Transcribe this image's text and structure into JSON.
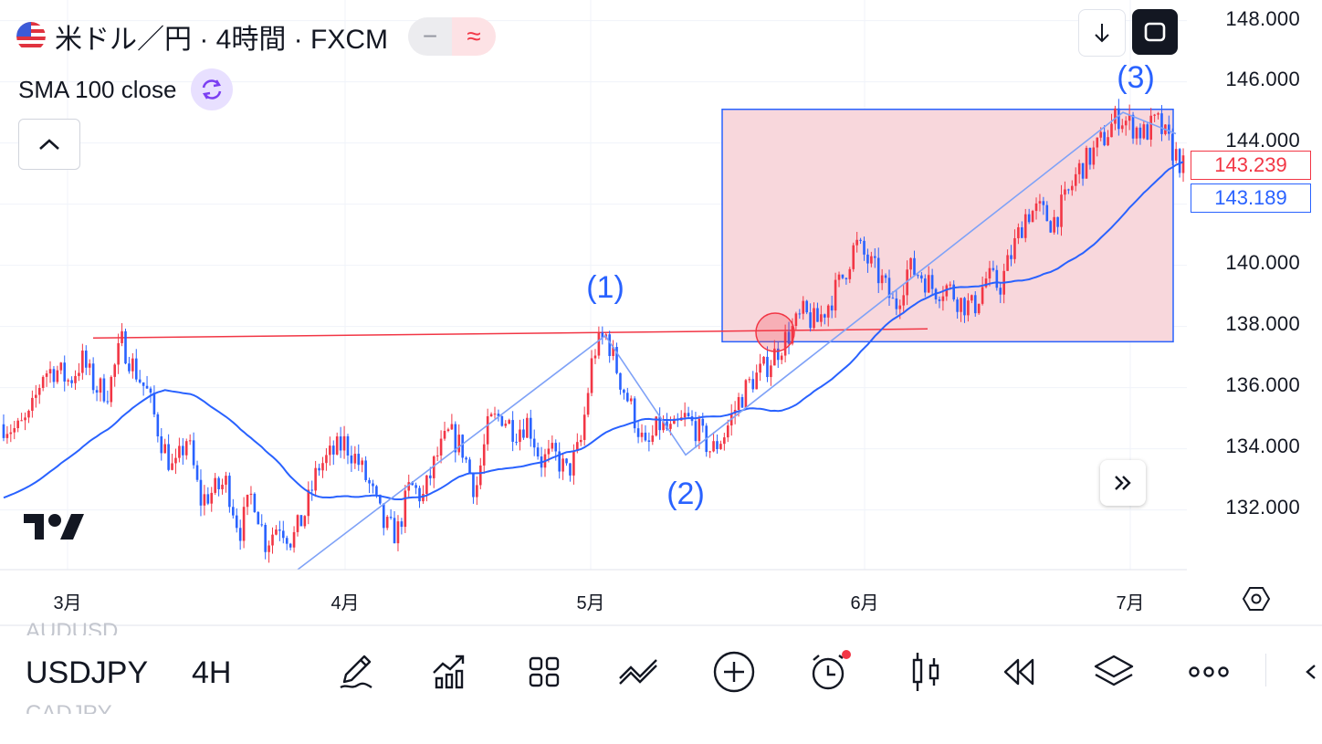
{
  "header": {
    "symbol_title": "米ドル／円 · 4時間 · FXCM",
    "minus_glyph": "−",
    "wave_glyph": "≈",
    "indicator_label": "SMA 100 close"
  },
  "price_axis": {
    "labels": [
      "148.000",
      "146.000",
      "144.000",
      "140.000",
      "138.000",
      "136.000",
      "134.000",
      "132.000"
    ],
    "current_price_red": "143.239",
    "current_price_blue": "143.189"
  },
  "time_axis": {
    "labels": [
      "3月",
      "4月",
      "5月",
      "6月",
      "7月"
    ]
  },
  "annotations": {
    "wave1": "(1)",
    "wave2": "(2)",
    "wave3": "(3)"
  },
  "bottom_toolbar": {
    "ghost_above": "AUDUSD",
    "ghost_below": "CADJPY",
    "symbol": "USDJPY",
    "timeframe": "4H",
    "icons": [
      "pencil-icon",
      "chart-up-icon",
      "grid-icon",
      "trend-icon",
      "plus-icon",
      "alarm-icon",
      "candles-icon",
      "rewind-icon",
      "layers-icon",
      "more-icon",
      "back-icon"
    ]
  },
  "colors": {
    "up": "#f23645",
    "down": "#2962ff",
    "sma": "#2962ff",
    "box_fill": "#f8d7dc",
    "box_border": "#2962ff",
    "level_line": "#f23645",
    "wave_line": "#7fa2f7"
  },
  "chart_data": {
    "type": "candlestick",
    "symbol": "USDJPY",
    "ylim": [
      130.0,
      148.8
    ],
    "x_ticks": [
      "3月",
      "4月",
      "5月",
      "6月",
      "7月"
    ],
    "sma_period": 100,
    "waves": [
      {
        "label": "(1)",
        "price": 137.7
      },
      {
        "label": "(2)",
        "price": 133.8
      },
      {
        "label": "(3)",
        "price": 145.0
      }
    ],
    "resistance_level": 137.8,
    "box_price_range": [
      137.5,
      145.1
    ],
    "last_close": 143.239,
    "sma_last": 143.189,
    "close_path": [
      134.8,
      134.6,
      135.0,
      136.5,
      136.6,
      136.2,
      136.9,
      136.0,
      135.9,
      137.5,
      136.6,
      135.8,
      134.3,
      133.2,
      134.4,
      132.3,
      132.6,
      132.9,
      131.3,
      132.6,
      130.9,
      131.6,
      131.0,
      131.9,
      133.4,
      133.8,
      134.2,
      133.6,
      132.7,
      131.5,
      131.2,
      132.8,
      132.4,
      133.7,
      134.5,
      134.0,
      132.6,
      134.8,
      135.1,
      134.6,
      134.9,
      133.6,
      133.8,
      133.2,
      134.1,
      137.2,
      137.7,
      136.3,
      135.2,
      133.9,
      134.8,
      134.5,
      135.0,
      134.6,
      133.9,
      134.5,
      135.5,
      136.2,
      136.6,
      137.2,
      137.8,
      138.4,
      138.1,
      138.8,
      139.6,
      140.7,
      140.1,
      139.5,
      138.6,
      139.9,
      139.7,
      139.2,
      139.3,
      138.8,
      138.6,
      139.6,
      139.3,
      140.5,
      141.7,
      141.8,
      141.4,
      142.1,
      143.1,
      143.6,
      144.2,
      144.9,
      144.6,
      144.3,
      144.7,
      143.9,
      143.2
    ]
  }
}
